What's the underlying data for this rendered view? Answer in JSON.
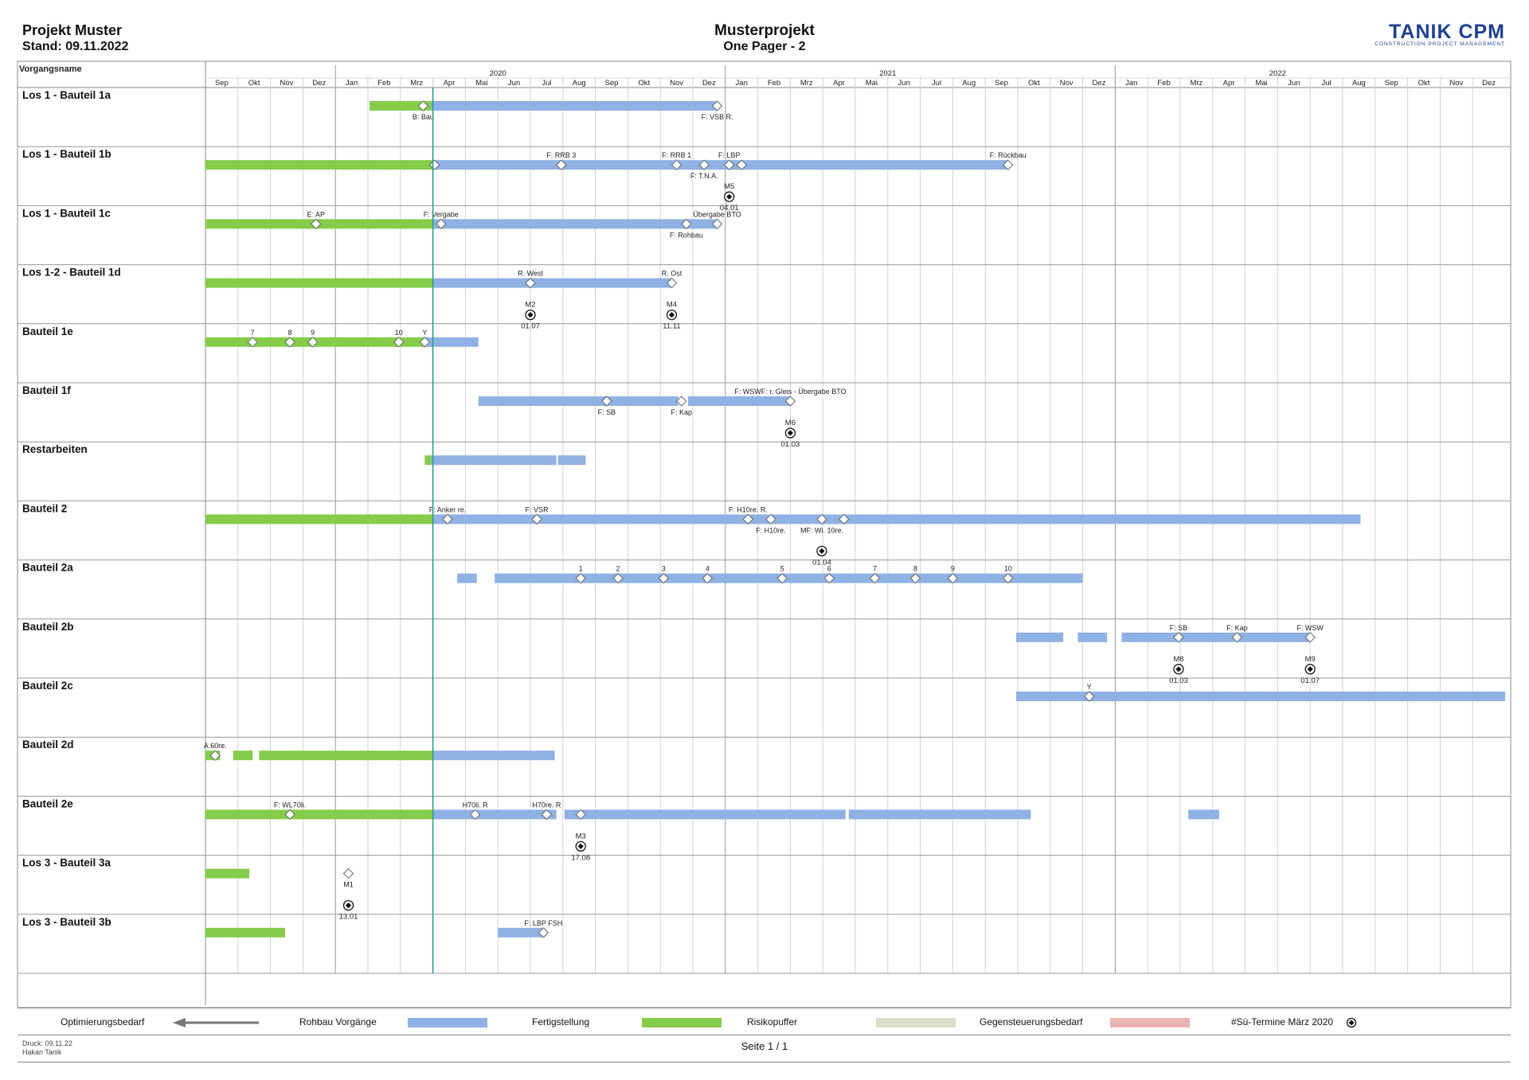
{
  "header": {
    "project": "Projekt Muster",
    "stand": "Stand: 09.11.2022",
    "title": "Musterprojekt",
    "subtitle": "One Pager - 2",
    "logo": "TANIK CPM",
    "logo_sub": "CONSTRUCTION PROJECT MANAGEMENT"
  },
  "legend": {
    "items": [
      {
        "label": "Optimierungsbedarf",
        "kind": "arrow"
      },
      {
        "label": "Rohbau Vorgänge",
        "color": "#8fb1e3"
      },
      {
        "label": "Fertigstellung",
        "color": "#84cc4a"
      },
      {
        "label": "Risikopuffer",
        "color": "#d8dfc6"
      },
      {
        "label": "Gegensteuerungsbedarf",
        "color": "#ebb4b4"
      },
      {
        "label": "#Sü-Termine März 2020",
        "kind": "milestone"
      }
    ]
  },
  "footer": {
    "druck": "Druck: 09.11.22",
    "author": "Hakan Tanik",
    "page": "Seite 1 / 1"
  },
  "chart_data": {
    "type": "gantt",
    "column_header": "Vorgangsname",
    "start": "2019-09",
    "months": [
      "Sep",
      "Okt",
      "Nov",
      "Dez",
      "Jan",
      "Feb",
      "Mrz",
      "Apr",
      "Mai",
      "Jun",
      "Jul",
      "Aug",
      "Sep",
      "Okt",
      "Nov",
      "Dez",
      "Jan",
      "Feb",
      "Mrz",
      "Apr",
      "Mai",
      "Jun",
      "Jul",
      "Aug",
      "Sep",
      "Okt",
      "Nov",
      "Dez",
      "Jan",
      "Feb",
      "Mrz",
      "Apr",
      "Mai",
      "Jun",
      "Jul",
      "Aug",
      "Sep",
      "Okt",
      "Nov",
      "Dez"
    ],
    "years": [
      {
        "label": "2020",
        "at": 9.0
      },
      {
        "label": "2021",
        "at": 21.0
      },
      {
        "label": "2022",
        "at": 33.0
      }
    ],
    "status_line": 7.0,
    "colors": {
      "rohbau": "#8fb1e3",
      "fertig": "#84cc4a"
    },
    "rows": [
      {
        "name": "Los 1 - Bauteil 1a",
        "bars": [
          {
            "from": 5.05,
            "to": 6.95,
            "type": "fertig"
          },
          {
            "from": 6.95,
            "to": 15.75,
            "type": "rohbau"
          }
        ],
        "diamonds": [
          {
            "at": 6.7,
            "label": "B: Bau",
            "pos": "below"
          },
          {
            "at": 15.75,
            "label": "F: VSB R.",
            "pos": "below"
          }
        ],
        "milestones": []
      },
      {
        "name": "Los 1 - Bauteil 1b",
        "bars": [
          {
            "from": 0.0,
            "to": 7.0,
            "type": "fertig"
          },
          {
            "from": 7.0,
            "to": 24.7,
            "type": "rohbau"
          }
        ],
        "diamonds": [
          {
            "at": 7.05,
            "label": "",
            "pos": "above"
          },
          {
            "at": 10.95,
            "label": "F: RRB 3",
            "pos": "above"
          },
          {
            "at": 14.5,
            "label": "F: RRB 1",
            "pos": "above"
          },
          {
            "at": 15.35,
            "label": "F: T.N.A.",
            "pos": "below"
          },
          {
            "at": 16.12,
            "label": "F: LBP",
            "pos": "above"
          },
          {
            "at": 16.5,
            "label": "",
            "pos": "above"
          },
          {
            "at": 24.7,
            "label": "F: Rückbau",
            "pos": "above"
          }
        ],
        "milestones": [
          {
            "at": 16.12,
            "label": "M5",
            "date": "04.01"
          }
        ]
      },
      {
        "name": "Los 1 - Bauteil 1c",
        "bars": [
          {
            "from": 0.0,
            "to": 7.0,
            "type": "fertig"
          },
          {
            "from": 7.0,
            "to": 15.75,
            "type": "rohbau"
          }
        ],
        "diamonds": [
          {
            "at": 3.4,
            "label": "E: AP",
            "pos": "above"
          },
          {
            "at": 7.25,
            "label": "F: Vergabe",
            "pos": "above"
          },
          {
            "at": 14.8,
            "label": "F: Rohbau",
            "pos": "below"
          },
          {
            "at": 15.75,
            "label": "Übergabe BTO",
            "pos": "above"
          }
        ],
        "milestones": []
      },
      {
        "name": "Los 1-2 - Bauteil 1d",
        "bars": [
          {
            "from": 0.0,
            "to": 7.0,
            "type": "fertig"
          },
          {
            "from": 7.0,
            "to": 14.35,
            "type": "rohbau"
          }
        ],
        "diamonds": [
          {
            "at": 10.0,
            "label": "R. West",
            "pos": "above"
          },
          {
            "at": 14.35,
            "label": "R. Ost",
            "pos": "above"
          }
        ],
        "milestones": [
          {
            "at": 10.0,
            "label": "M2",
            "date": "01.07"
          },
          {
            "at": 14.35,
            "label": "M4",
            "date": "11.11"
          }
        ]
      },
      {
        "name": "Bauteil 1e",
        "bars": [
          {
            "from": 0.0,
            "to": 6.8,
            "type": "fertig"
          },
          {
            "from": 6.8,
            "to": 8.4,
            "type": "rohbau"
          }
        ],
        "diamonds": [
          {
            "at": 1.45,
            "label": "7",
            "pos": "above"
          },
          {
            "at": 2.6,
            "label": "8",
            "pos": "above"
          },
          {
            "at": 3.3,
            "label": "9",
            "pos": "above"
          },
          {
            "at": 5.95,
            "label": "10",
            "pos": "above"
          },
          {
            "at": 6.75,
            "label": "Y",
            "pos": "above"
          }
        ],
        "milestones": []
      },
      {
        "name": "Bauteil 1f",
        "bars": [
          {
            "from": 8.4,
            "to": 14.55,
            "type": "rohbau"
          },
          {
            "from": 14.85,
            "to": 18.0,
            "type": "rohbau"
          }
        ],
        "diamonds": [
          {
            "at": 12.35,
            "label": "F: SB",
            "pos": "below"
          },
          {
            "at": 14.65,
            "label": "F: Kap",
            "pos": "below"
          },
          {
            "at": 18.0,
            "label": "F: WSWF: r. Gleis - Übergabe BTO",
            "pos": "above"
          }
        ],
        "milestones": [
          {
            "at": 18.0,
            "label": "M6",
            "date": "01.03"
          }
        ]
      },
      {
        "name": "Restarbeiten",
        "bars": [
          {
            "from": 6.75,
            "to": 6.95,
            "type": "fertig"
          },
          {
            "from": 6.95,
            "to": 10.8,
            "type": "rohbau"
          },
          {
            "from": 10.85,
            "to": 11.7,
            "type": "rohbau"
          }
        ],
        "diamonds": [],
        "milestones": []
      },
      {
        "name": "Bauteil 2",
        "bars": [
          {
            "from": 0.0,
            "to": 7.0,
            "type": "fertig"
          },
          {
            "from": 7.0,
            "to": 35.55,
            "type": "rohbau"
          }
        ],
        "diamonds": [
          {
            "at": 7.45,
            "label": "F: Anker re.",
            "pos": "above"
          },
          {
            "at": 10.2,
            "label": "F: VSR",
            "pos": "above"
          },
          {
            "at": 16.7,
            "label": "F: H10re. R.",
            "pos": "above"
          },
          {
            "at": 17.4,
            "label": "F: H10re.",
            "pos": "below"
          },
          {
            "at": 18.97,
            "label": "MF: Wi. 10re.",
            "pos": "below"
          },
          {
            "at": 19.65,
            "label": "",
            "pos": "above"
          }
        ],
        "milestones": [
          {
            "at": 18.97,
            "label": "",
            "date": "01.04"
          }
        ]
      },
      {
        "name": "Bauteil 2a",
        "bars": [
          {
            "from": 7.75,
            "to": 8.35,
            "type": "rohbau"
          },
          {
            "from": 8.9,
            "to": 27.0,
            "type": "rohbau"
          }
        ],
        "diamonds": [
          {
            "at": 11.55,
            "label": "1",
            "pos": "above"
          },
          {
            "at": 12.7,
            "label": "2",
            "pos": "above"
          },
          {
            "at": 14.1,
            "label": "3",
            "pos": "above"
          },
          {
            "at": 15.45,
            "label": "4",
            "pos": "above"
          },
          {
            "at": 17.75,
            "label": "5",
            "pos": "above"
          },
          {
            "at": 19.2,
            "label": "6",
            "pos": "above"
          },
          {
            "at": 20.6,
            "label": "7",
            "pos": "above"
          },
          {
            "at": 21.85,
            "label": "8",
            "pos": "above"
          },
          {
            "at": 23.0,
            "label": "9",
            "pos": "above"
          },
          {
            "at": 24.7,
            "label": "10",
            "pos": "above"
          }
        ],
        "milestones": []
      },
      {
        "name": "Bauteil 2b",
        "bars": [
          {
            "from": 24.95,
            "to": 26.4,
            "type": "rohbau"
          },
          {
            "from": 26.85,
            "to": 27.75,
            "type": "rohbau"
          },
          {
            "from": 28.2,
            "to": 34.0,
            "type": "rohbau"
          }
        ],
        "diamonds": [
          {
            "at": 29.95,
            "label": "F: SB",
            "pos": "above"
          },
          {
            "at": 31.75,
            "label": "F: Kap",
            "pos": "above"
          },
          {
            "at": 34.0,
            "label": "F: WSW",
            "pos": "above"
          }
        ],
        "milestones": [
          {
            "at": 29.95,
            "label": "M8",
            "date": "01.03"
          },
          {
            "at": 34.0,
            "label": "M9",
            "date": "01.07"
          }
        ]
      },
      {
        "name": "Bauteil 2c",
        "bars": [
          {
            "from": 24.95,
            "to": 40.0,
            "type": "rohbau"
          }
        ],
        "diamonds": [
          {
            "at": 27.2,
            "label": "Y",
            "pos": "above"
          }
        ],
        "milestones": []
      },
      {
        "name": "Bauteil 2d",
        "bars": [
          {
            "from": 0.0,
            "to": 0.45,
            "type": "fertig"
          },
          {
            "from": 0.85,
            "to": 1.45,
            "type": "fertig"
          },
          {
            "from": 1.65,
            "to": 7.0,
            "type": "fertig"
          },
          {
            "from": 7.0,
            "to": 10.75,
            "type": "rohbau"
          }
        ],
        "diamonds": [
          {
            "at": 0.3,
            "label": "A.60re.",
            "pos": "above"
          }
        ],
        "milestones": []
      },
      {
        "name": "Bauteil 2e",
        "bars": [
          {
            "from": 0.0,
            "to": 7.0,
            "type": "fertig"
          },
          {
            "from": 7.0,
            "to": 10.8,
            "type": "rohbau"
          },
          {
            "from": 11.05,
            "to": 19.7,
            "type": "rohbau"
          },
          {
            "from": 19.8,
            "to": 25.4,
            "type": "rohbau"
          },
          {
            "from": 30.25,
            "to": 31.2,
            "type": "rohbau"
          }
        ],
        "diamonds": [
          {
            "at": 2.6,
            "label": "F: WL70li.",
            "pos": "above"
          },
          {
            "at": 8.3,
            "label": "H70li. R",
            "pos": "above"
          },
          {
            "at": 10.5,
            "label": "H70re. R",
            "pos": "above"
          },
          {
            "at": 11.55,
            "label": "",
            "pos": "above"
          }
        ],
        "milestones": [
          {
            "at": 11.55,
            "label": "M3",
            "date": "17.08"
          }
        ]
      },
      {
        "name": "Los 3 - Bauteil 3a",
        "bars": [
          {
            "from": 0.0,
            "to": 1.35,
            "type": "fertig"
          }
        ],
        "diamonds": [
          {
            "at": 4.4,
            "label": "M1",
            "pos": "below"
          }
        ],
        "milestones": [
          {
            "at": 4.4,
            "label": "",
            "date": "13.01"
          }
        ]
      },
      {
        "name": "Los 3 - Bauteil 3b",
        "bars": [
          {
            "from": 0.0,
            "to": 2.45,
            "type": "fertig"
          },
          {
            "from": 9.0,
            "to": 10.45,
            "type": "rohbau"
          }
        ],
        "diamonds": [
          {
            "at": 10.4,
            "label": "F: LBP FSH",
            "pos": "above"
          }
        ],
        "milestones": []
      }
    ]
  }
}
